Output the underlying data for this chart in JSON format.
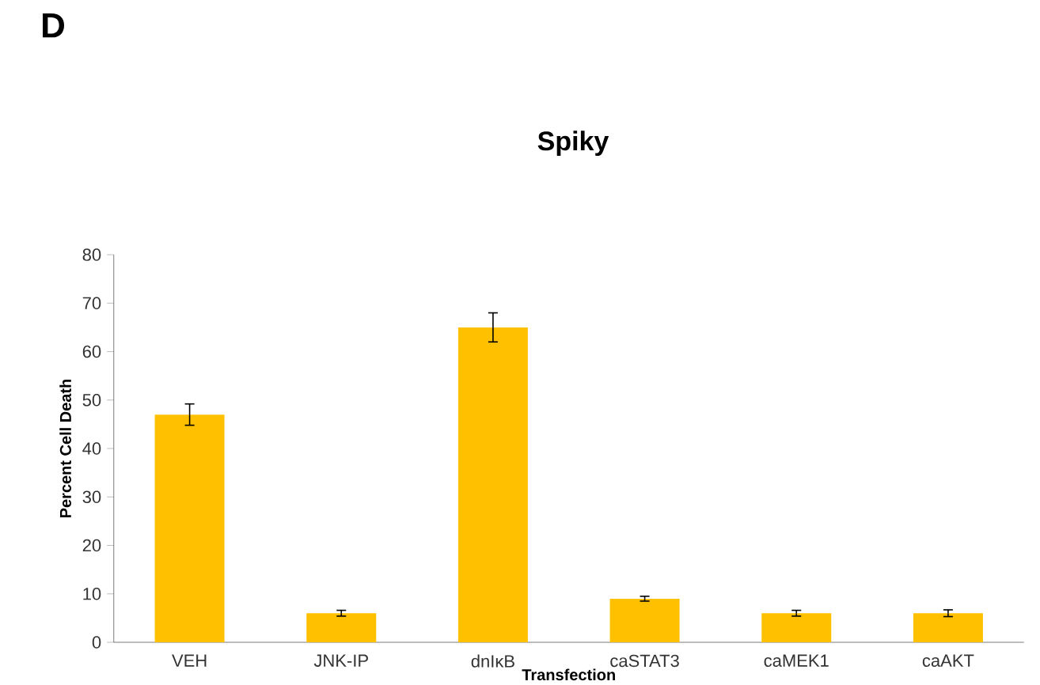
{
  "chart_data": {
    "type": "bar",
    "title": "Spiky",
    "xlabel": "Transfection",
    "ylabel": "Percent Cell Death",
    "categories": [
      "VEH",
      "JNK-IP",
      "dnIκB",
      "caSTAT3",
      "caMEK1",
      "caAKT"
    ],
    "values": [
      47,
      6,
      65,
      9,
      6,
      6
    ],
    "errors": [
      2.2,
      0.6,
      3,
      0.5,
      0.6,
      0.7
    ],
    "color": "#ffc000",
    "ylim": [
      0,
      80
    ],
    "yticks": [
      0,
      10,
      20,
      30,
      40,
      50,
      60,
      70,
      80
    ],
    "grid": false,
    "annotations": [
      "D"
    ]
  }
}
